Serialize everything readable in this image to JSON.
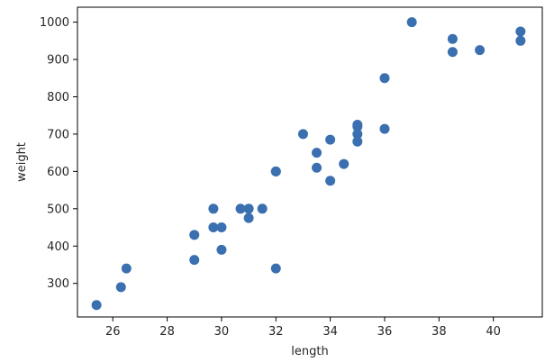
{
  "chart_data": {
    "type": "scatter",
    "title": "",
    "xlabel": "length",
    "ylabel": "weight",
    "xlim": [
      24.7,
      41.8
    ],
    "ylim": [
      210,
      1040
    ],
    "xticks": [
      26,
      28,
      30,
      32,
      34,
      36,
      38,
      40
    ],
    "yticks": [
      300,
      400,
      500,
      600,
      700,
      800,
      900,
      1000
    ],
    "xtick_labels": [
      "26",
      "28",
      "30",
      "32",
      "34",
      "36",
      "38",
      "40"
    ],
    "ytick_labels": [
      "300",
      "400",
      "500",
      "600",
      "700",
      "800",
      "900",
      "1000"
    ],
    "grid": false,
    "marker_color": "#3a6fb0",
    "points": [
      {
        "x": 25.4,
        "y": 242
      },
      {
        "x": 26.3,
        "y": 290
      },
      {
        "x": 26.5,
        "y": 340
      },
      {
        "x": 29.0,
        "y": 363
      },
      {
        "x": 29.0,
        "y": 430
      },
      {
        "x": 29.7,
        "y": 450
      },
      {
        "x": 29.7,
        "y": 500
      },
      {
        "x": 30.0,
        "y": 390
      },
      {
        "x": 30.0,
        "y": 450
      },
      {
        "x": 30.7,
        "y": 500
      },
      {
        "x": 31.0,
        "y": 475
      },
      {
        "x": 31.0,
        "y": 500
      },
      {
        "x": 31.5,
        "y": 500
      },
      {
        "x": 32.0,
        "y": 340
      },
      {
        "x": 32.0,
        "y": 600
      },
      {
        "x": 32.0,
        "y": 600
      },
      {
        "x": 33.0,
        "y": 700
      },
      {
        "x": 33.5,
        "y": 610
      },
      {
        "x": 33.5,
        "y": 650
      },
      {
        "x": 34.0,
        "y": 575
      },
      {
        "x": 34.0,
        "y": 685
      },
      {
        "x": 34.5,
        "y": 620
      },
      {
        "x": 35.0,
        "y": 680
      },
      {
        "x": 35.0,
        "y": 700
      },
      {
        "x": 35.0,
        "y": 725
      },
      {
        "x": 35.0,
        "y": 720
      },
      {
        "x": 36.0,
        "y": 714
      },
      {
        "x": 36.0,
        "y": 850
      },
      {
        "x": 37.0,
        "y": 1000
      },
      {
        "x": 38.5,
        "y": 920
      },
      {
        "x": 38.5,
        "y": 955
      },
      {
        "x": 39.5,
        "y": 925
      },
      {
        "x": 41.0,
        "y": 975
      },
      {
        "x": 41.0,
        "y": 950
      }
    ]
  }
}
